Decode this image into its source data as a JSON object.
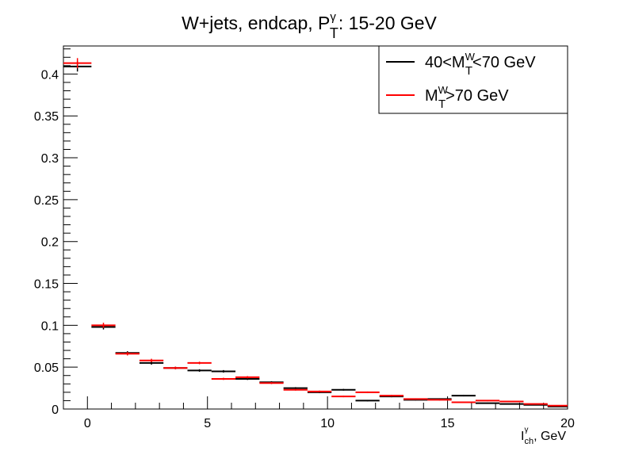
{
  "chart_data": {
    "type": "histogram",
    "title": {
      "prefix": "W+jets,  endcap,  P",
      "sup": "γ",
      "sub": "T",
      "suffix": ": 15-20 GeV"
    },
    "xlabel": {
      "main": "I",
      "sup": "γ",
      "sub": "ch",
      "suffix": ", GeV"
    },
    "ylabel": "",
    "xlim": [
      -1,
      20
    ],
    "ylim": [
      0,
      0.4335
    ],
    "x_ticks": [
      0,
      5,
      10,
      15,
      20
    ],
    "y_ticks": [
      0,
      0.05,
      0.1,
      0.15,
      0.2,
      0.25,
      0.3,
      0.35,
      0.4
    ],
    "y_tick_labels": [
      "0",
      "0.05",
      "0.1",
      "0.15",
      "0.2",
      "0.25",
      "0.3",
      "0.35",
      "0.4"
    ],
    "bin_edges": [
      -1,
      0.167,
      1.167,
      2.167,
      3.167,
      4.167,
      5.167,
      6.167,
      7.167,
      8.167,
      9.167,
      10.167,
      11.167,
      12.167,
      13.167,
      14.167,
      15.167,
      16.167,
      17.167,
      18.167,
      19.167,
      20
    ],
    "grid": false,
    "legend_position": "top-right",
    "series": [
      {
        "name_parts": {
          "pre": "40<M",
          "sup": "W",
          "sub": "T",
          "post": "<70 GeV"
        },
        "color": "#000000",
        "values": [
          0.409,
          0.098,
          0.067,
          0.055,
          0.049,
          0.046,
          0.045,
          0.036,
          0.032,
          0.025,
          0.02,
          0.023,
          0.01,
          0.015,
          0.011,
          0.012,
          0.016,
          0.007,
          0.006,
          0.005,
          0.003
        ],
        "errors": [
          0.006,
          0.003,
          0.002,
          0.002,
          0.0015,
          0.0015,
          0.0015,
          0.0013,
          0.0012,
          0.0011,
          0.001,
          0.001,
          0.0008,
          0.0009,
          0.0008,
          0.0008,
          0.0009,
          0.0006,
          0.0006,
          0.0005,
          0.0004
        ]
      },
      {
        "name_parts": {
          "pre": "M",
          "sup": "W",
          "sub": "T",
          "post": ">70 GeV"
        },
        "color": "#ff0000",
        "values": [
          0.413,
          0.1,
          0.066,
          0.058,
          0.049,
          0.055,
          0.036,
          0.038,
          0.031,
          0.023,
          0.021,
          0.015,
          0.02,
          0.016,
          0.012,
          0.011,
          0.008,
          0.01,
          0.009,
          0.006,
          0.004
        ],
        "errors": [
          0.006,
          0.003,
          0.002,
          0.002,
          0.0015,
          0.0015,
          0.0013,
          0.0013,
          0.0012,
          0.001,
          0.001,
          0.0009,
          0.0009,
          0.0009,
          0.0008,
          0.0008,
          0.0007,
          0.0007,
          0.0007,
          0.0006,
          0.0005
        ]
      }
    ]
  }
}
